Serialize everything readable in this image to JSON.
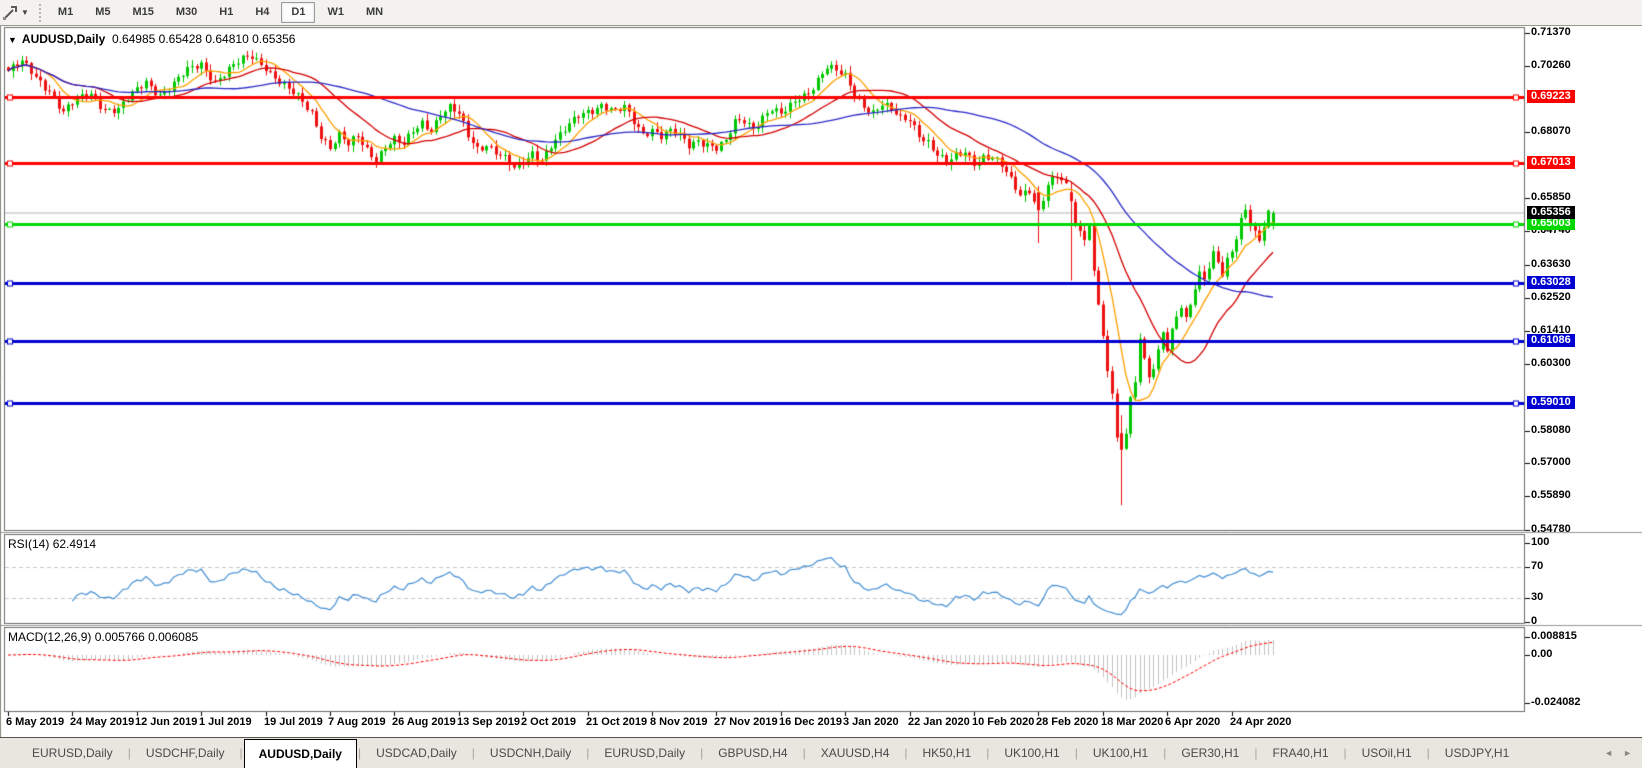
{
  "toolbar": {
    "cursor_tool_icon": "crosshair-cursor-icon",
    "dropdown_glyph": "▼",
    "timeframes": [
      {
        "label": "M1",
        "active": false
      },
      {
        "label": "M5",
        "active": false
      },
      {
        "label": "M15",
        "active": false
      },
      {
        "label": "M30",
        "active": false
      },
      {
        "label": "H1",
        "active": false
      },
      {
        "label": "H4",
        "active": false
      },
      {
        "label": "D1",
        "active": true
      },
      {
        "label": "W1",
        "active": false
      },
      {
        "label": "MN",
        "active": false
      }
    ]
  },
  "chart": {
    "title": {
      "collapse_icon": "▼",
      "symbol": "AUDUSD,Daily",
      "ohlc_text": "0.64985 0.65428 0.64810 0.65356"
    }
  },
  "chart_data": {
    "type": "candlestick",
    "symbol": "AUDUSD",
    "timeframe": "Daily",
    "last_ohlc": {
      "open": 0.64985,
      "high": 0.65428,
      "low": 0.6481,
      "close": 0.65356
    },
    "up_color": "#00C800",
    "down_color": "#EE1111",
    "price_axis_ticks": [
      "0.71370",
      "0.70260",
      "0.68070",
      "0.65850",
      "0.64740",
      "0.63630",
      "0.62520",
      "0.61410",
      "0.60300",
      "0.58080",
      "0.57000",
      "0.55890",
      "0.54780"
    ],
    "current_price": {
      "value": 0.65356,
      "label": "0.65356",
      "line_color": "#b4b4b4",
      "chip_color": "#000000"
    },
    "horizontal_lines": [
      {
        "value": 0.69223,
        "label": "0.69223",
        "color": "#FF0000"
      },
      {
        "value": 0.67013,
        "label": "0.67013",
        "color": "#FF0000"
      },
      {
        "value": 0.65003,
        "label": "0.65003",
        "color": "#00D800"
      },
      {
        "value": 0.63028,
        "label": "0.63028",
        "color": "#0000D0"
      },
      {
        "value": 0.61086,
        "label": "0.61086",
        "color": "#0000D0"
      },
      {
        "value": 0.5901,
        "label": "0.59010",
        "color": "#0000D0"
      }
    ],
    "moving_averages": [
      {
        "name": "fast",
        "period": 8,
        "color": "#FFA000"
      },
      {
        "name": "medium",
        "period": 20,
        "color": "#D40000"
      },
      {
        "name": "slow",
        "period": 45,
        "color": "#2B2BC8"
      }
    ],
    "date_ticks": [
      {
        "label": "6 May 2019",
        "bar": 0
      },
      {
        "label": "24 May 2019",
        "bar": 14
      },
      {
        "label": "12 Jun 2019",
        "bar": 28
      },
      {
        "label": "1 Jul 2019",
        "bar": 42
      },
      {
        "label": "19 Jul 2019",
        "bar": 56
      },
      {
        "label": "7 Aug 2019",
        "bar": 70
      },
      {
        "label": "26 Aug 2019",
        "bar": 84
      },
      {
        "label": "13 Sep 2019",
        "bar": 98
      },
      {
        "label": "2 Oct 2019",
        "bar": 112
      },
      {
        "label": "21 Oct 2019",
        "bar": 126
      },
      {
        "label": "8 Nov 2019",
        "bar": 140
      },
      {
        "label": "27 Nov 2019",
        "bar": 154
      },
      {
        "label": "16 Dec 2019",
        "bar": 168
      },
      {
        "label": "3 Jan 2020",
        "bar": 182
      },
      {
        "label": "22 Jan 2020",
        "bar": 196
      },
      {
        "label": "10 Feb 2020",
        "bar": 210
      },
      {
        "label": "28 Feb 2020",
        "bar": 224
      },
      {
        "label": "18 Mar 2020",
        "bar": 238
      },
      {
        "label": "6 Apr 2020",
        "bar": 252
      },
      {
        "label": "24 Apr 2020",
        "bar": 266
      }
    ],
    "bar_count": 276,
    "anchors": [
      [
        0,
        0.701
      ],
      [
        3,
        0.7032
      ],
      [
        6,
        0.699
      ],
      [
        9,
        0.6952
      ],
      [
        12,
        0.6872
      ],
      [
        15,
        0.6908
      ],
      [
        18,
        0.6932
      ],
      [
        21,
        0.689
      ],
      [
        24,
        0.688
      ],
      [
        27,
        0.6925
      ],
      [
        30,
        0.6975
      ],
      [
        33,
        0.6938
      ],
      [
        36,
        0.6965
      ],
      [
        39,
        0.7005
      ],
      [
        42,
        0.7035
      ],
      [
        45,
        0.6982
      ],
      [
        48,
        0.7012
      ],
      [
        51,
        0.7042
      ],
      [
        53,
        0.7058
      ],
      [
        56,
        0.703
      ],
      [
        58,
        0.6992
      ],
      [
        61,
        0.6942
      ],
      [
        64,
        0.6902
      ],
      [
        66,
        0.6872
      ],
      [
        68,
        0.6802
      ],
      [
        70,
        0.6758
      ],
      [
        72,
        0.6792
      ],
      [
        74,
        0.6756
      ],
      [
        76,
        0.6788
      ],
      [
        78,
        0.6752
      ],
      [
        80,
        0.6722
      ],
      [
        82,
        0.6762
      ],
      [
        84,
        0.6776
      ],
      [
        86,
        0.6756
      ],
      [
        88,
        0.6806
      ],
      [
        90,
        0.6842
      ],
      [
        92,
        0.6822
      ],
      [
        94,
        0.6868
      ],
      [
        96,
        0.6882
      ],
      [
        98,
        0.6858
      ],
      [
        100,
        0.6792
      ],
      [
        102,
        0.6756
      ],
      [
        104,
        0.6772
      ],
      [
        106,
        0.6742
      ],
      [
        108,
        0.6712
      ],
      [
        110,
        0.6676
      ],
      [
        112,
        0.6702
      ],
      [
        114,
        0.6742
      ],
      [
        116,
        0.6722
      ],
      [
        118,
        0.6762
      ],
      [
        120,
        0.6788
      ],
      [
        122,
        0.6822
      ],
      [
        124,
        0.6862
      ],
      [
        126,
        0.6882
      ],
      [
        129,
        0.69
      ],
      [
        132,
        0.6866
      ],
      [
        134,
        0.6882
      ],
      [
        136,
        0.6842
      ],
      [
        138,
        0.6806
      ],
      [
        140,
        0.6822
      ],
      [
        142,
        0.6792
      ],
      [
        144,
        0.6802
      ],
      [
        146,
        0.6786
      ],
      [
        148,
        0.6762
      ],
      [
        150,
        0.6786
      ],
      [
        152,
        0.6772
      ],
      [
        154,
        0.6752
      ],
      [
        156,
        0.6766
      ],
      [
        158,
        0.6832
      ],
      [
        160,
        0.6846
      ],
      [
        162,
        0.6826
      ],
      [
        164,
        0.6862
      ],
      [
        166,
        0.6882
      ],
      [
        168,
        0.6856
      ],
      [
        170,
        0.6886
      ],
      [
        172,
        0.6922
      ],
      [
        174,
        0.6946
      ],
      [
        176,
        0.6986
      ],
      [
        178,
        0.7022
      ],
      [
        180,
        0.7002
      ],
      [
        182,
        0.6986
      ],
      [
        184,
        0.6936
      ],
      [
        186,
        0.6902
      ],
      [
        188,
        0.6876
      ],
      [
        190,
        0.6896
      ],
      [
        192,
        0.6872
      ],
      [
        194,
        0.6846
      ],
      [
        196,
        0.6852
      ],
      [
        198,
        0.6806
      ],
      [
        200,
        0.6776
      ],
      [
        202,
        0.6726
      ],
      [
        204,
        0.6692
      ],
      [
        206,
        0.6722
      ],
      [
        208,
        0.6746
      ],
      [
        210,
        0.6712
      ],
      [
        212,
        0.6726
      ],
      [
        214,
        0.6716
      ],
      [
        216,
        0.6686
      ],
      [
        218,
        0.6642
      ],
      [
        220,
        0.6602
      ],
      [
        222,
        0.6622
      ],
      [
        224,
        0.6545
      ],
      [
        226,
        0.6622
      ],
      [
        228,
        0.6652
      ],
      [
        230,
        0.6632
      ],
      [
        231,
        0.6575
      ],
      [
        232,
        0.6502
      ],
      [
        234,
        0.6452
      ],
      [
        235,
        0.6496
      ],
      [
        236,
        0.6342
      ],
      [
        237,
        0.6232
      ],
      [
        238,
        0.6122
      ],
      [
        239,
        0.6002
      ],
      [
        240,
        0.5932
      ],
      [
        241,
        0.5782
      ],
      [
        242,
        0.5745
      ],
      [
        243,
        0.5802
      ],
      [
        244,
        0.5922
      ],
      [
        245,
        0.5972
      ],
      [
        246,
        0.6122
      ],
      [
        247,
        0.6052
      ],
      [
        248,
        0.5986
      ],
      [
        249,
        0.6016
      ],
      [
        250,
        0.6076
      ],
      [
        251,
        0.6132
      ],
      [
        252,
        0.6072
      ],
      [
        253,
        0.6136
      ],
      [
        254,
        0.6182
      ],
      [
        255,
        0.6232
      ],
      [
        256,
        0.6192
      ],
      [
        257,
        0.6236
      ],
      [
        258,
        0.6302
      ],
      [
        259,
        0.6342
      ],
      [
        260,
        0.6312
      ],
      [
        261,
        0.6356
      ],
      [
        262,
        0.6392
      ],
      [
        263,
        0.6356
      ],
      [
        264,
        0.6322
      ],
      [
        265,
        0.6372
      ],
      [
        266,
        0.6402
      ],
      [
        267,
        0.6462
      ],
      [
        268,
        0.6522
      ],
      [
        269,
        0.6556
      ],
      [
        270,
        0.6512
      ],
      [
        271,
        0.6476
      ],
      [
        272,
        0.6442
      ],
      [
        273,
        0.6492
      ],
      [
        274,
        0.6526
      ],
      [
        275,
        0.65356
      ]
    ],
    "special_bars": {
      "224": [
        0.6605,
        0.6625,
        0.6435,
        0.6545
      ],
      "231": [
        0.6605,
        0.664,
        0.631,
        0.6575
      ],
      "242": [
        0.58,
        0.586,
        0.556,
        0.5745
      ],
      "275": [
        0.64985,
        0.65428,
        0.6481,
        0.65356
      ]
    }
  },
  "rsi": {
    "label": "RSI(14)",
    "value": "62.4914",
    "line_color": "#4690D4",
    "level_line_color": "#c8c8c8",
    "levels": [
      70,
      30
    ],
    "axis_ticks": [
      "100",
      "70",
      "30",
      "0"
    ]
  },
  "macd": {
    "label": "MACD(12,26,9)",
    "macd_value": "0.005766",
    "signal_value": "0.006085",
    "histogram_color": "#c4c4c4",
    "signal_color": "#FF0000",
    "axis_ticks": [
      "0.008815",
      "0.00",
      "-0.024082"
    ]
  },
  "tabbar": {
    "scroll_left_icon": "◄",
    "scroll_right_icon": "►",
    "tabs": [
      {
        "label": "EURUSD,Daily",
        "active": false
      },
      {
        "label": "USDCHF,Daily",
        "active": false
      },
      {
        "label": "AUDUSD,Daily",
        "active": true
      },
      {
        "label": "USDCAD,Daily",
        "active": false
      },
      {
        "label": "USDCNH,Daily",
        "active": false
      },
      {
        "label": "EURUSD,Daily",
        "active": false
      },
      {
        "label": "GBPUSD,H4",
        "active": false
      },
      {
        "label": "XAUUSD,H4",
        "active": false
      },
      {
        "label": "HK50,H1",
        "active": false
      },
      {
        "label": "UK100,H1",
        "active": false
      },
      {
        "label": "UK100,H1",
        "active": false
      },
      {
        "label": "GER30,H1",
        "active": false
      },
      {
        "label": "FRA40,H1",
        "active": false
      },
      {
        "label": "USOil,H1",
        "active": false
      },
      {
        "label": "USDJPY,H1",
        "active": false
      }
    ]
  }
}
